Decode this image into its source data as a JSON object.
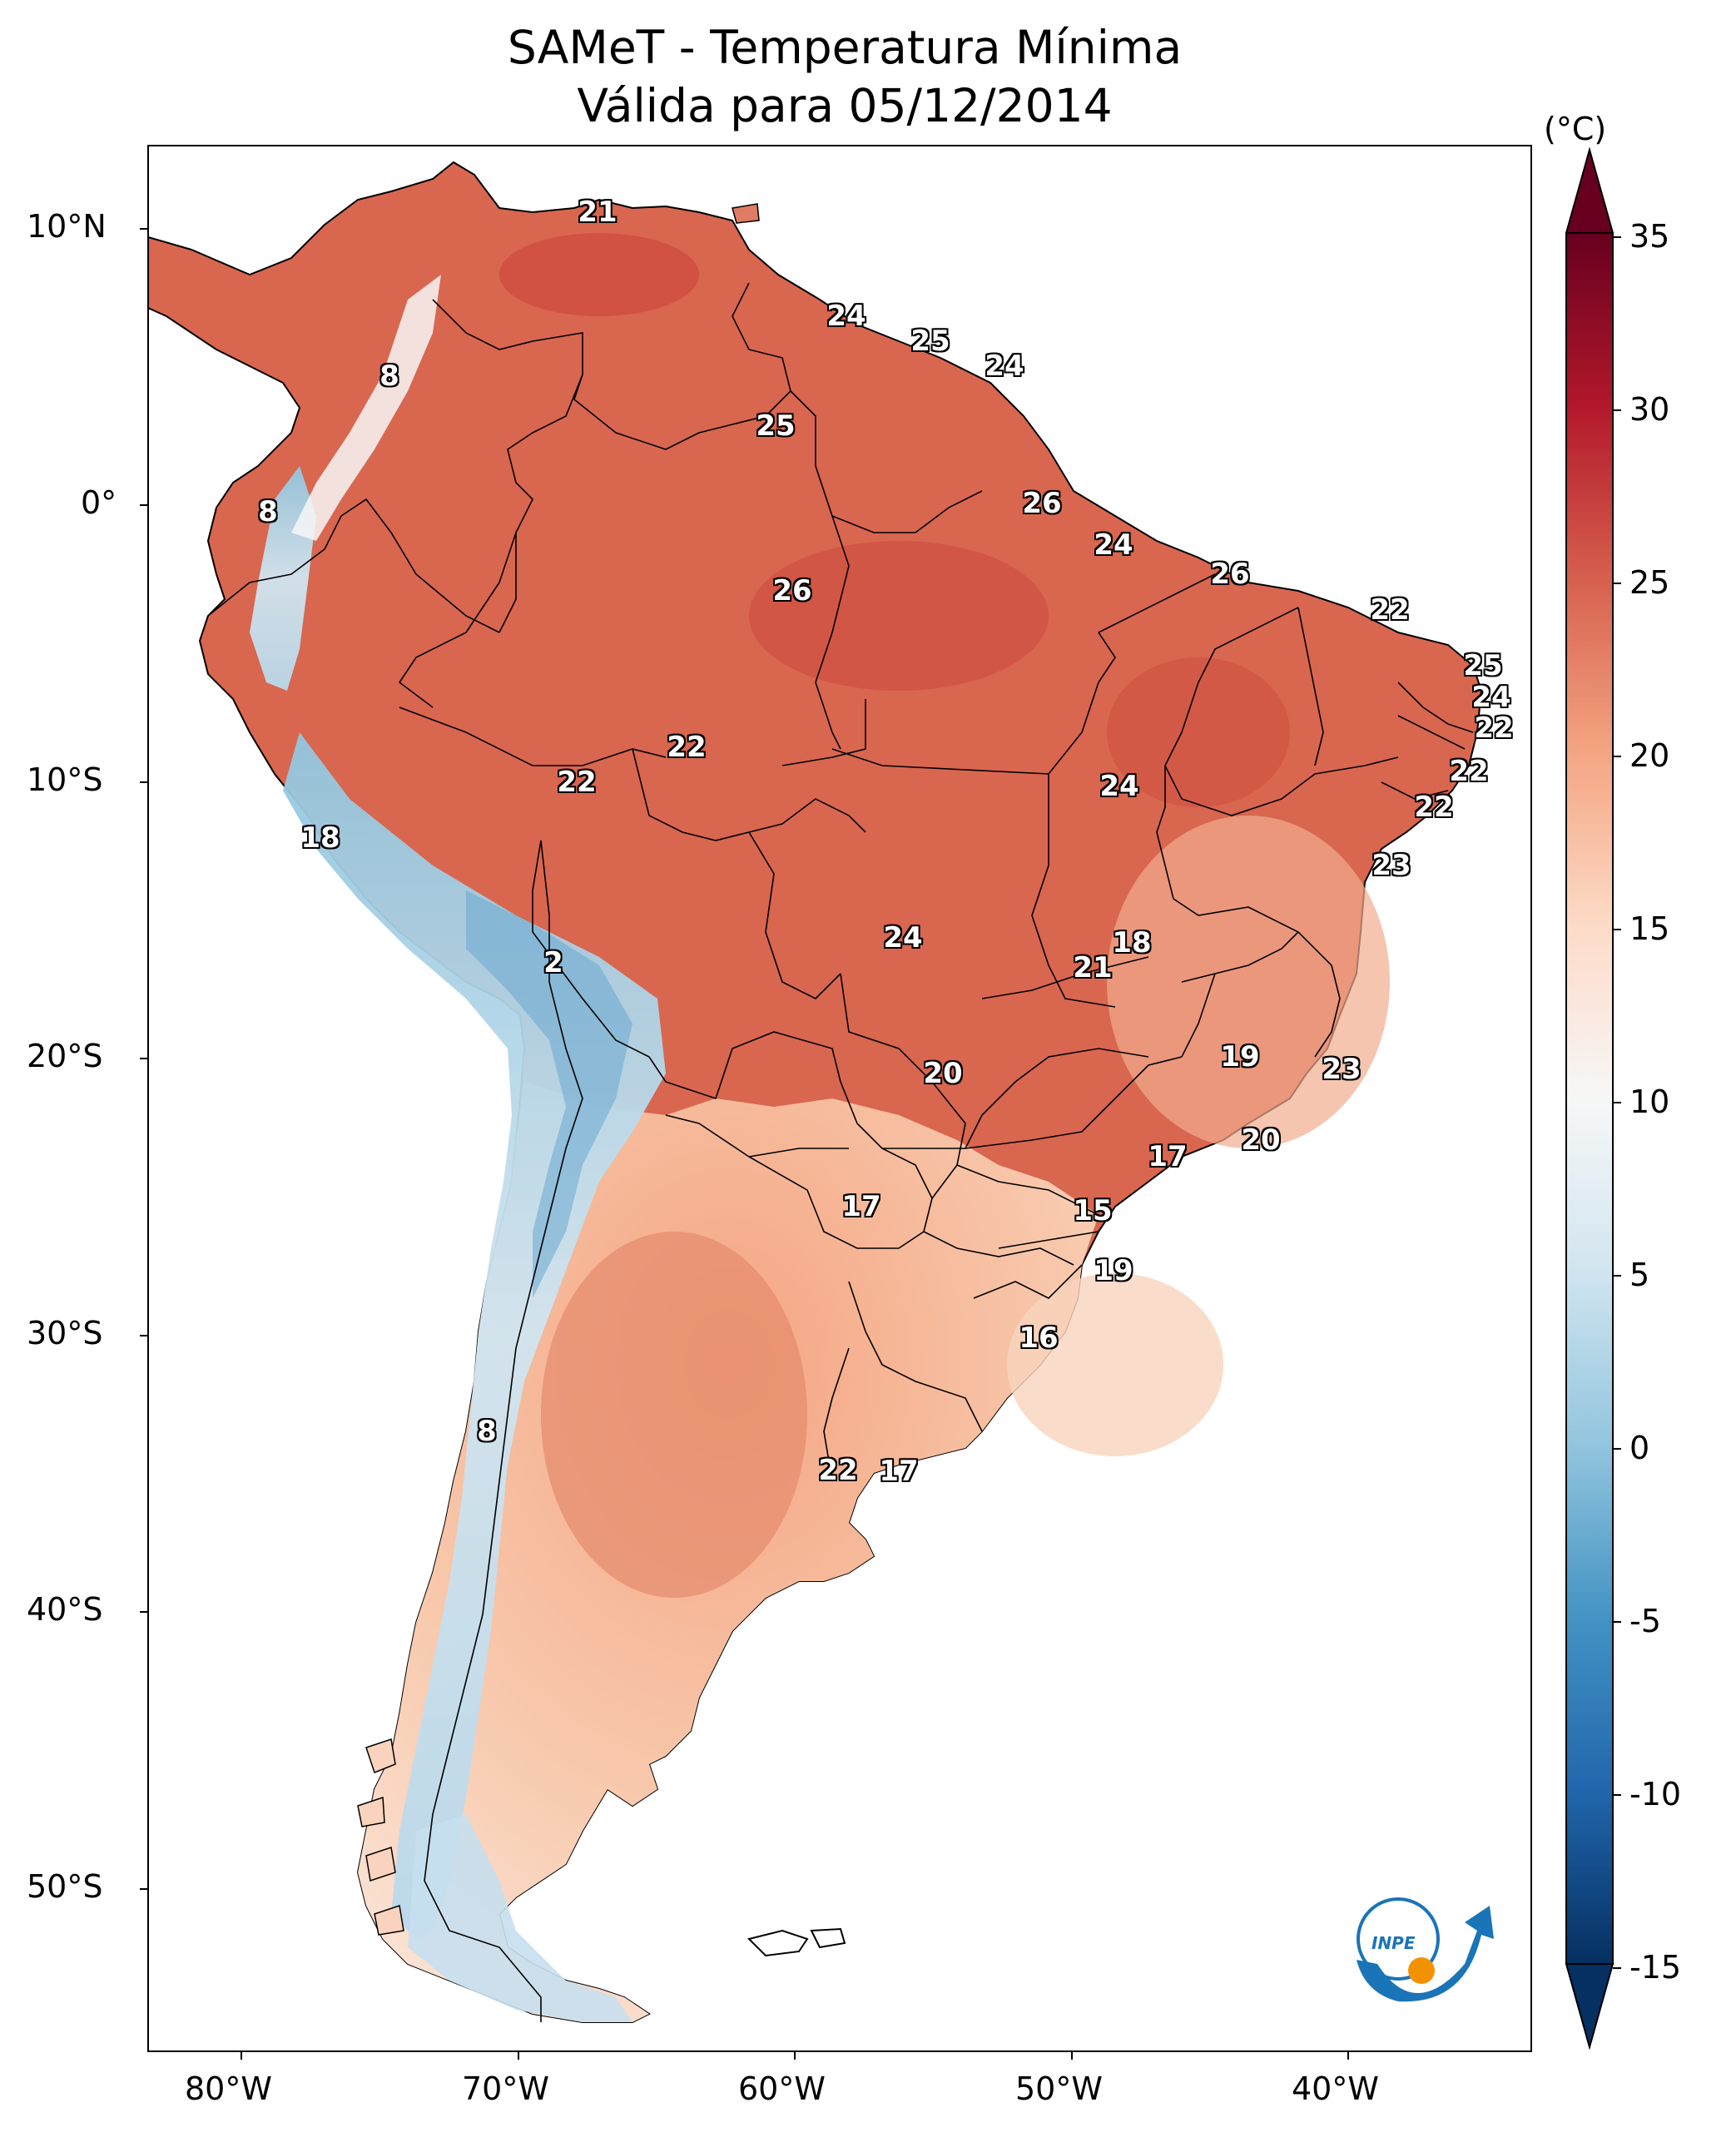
{
  "title_line1": "SAMeT - Temperatura Mínima",
  "title_line2": "Válida para 05/12/2014",
  "colorbar": {
    "unit": "(°C)",
    "ticks": [
      "35",
      "30",
      "25",
      "20",
      "15",
      "10",
      "5",
      "0",
      "-5",
      "-10",
      "-15"
    ],
    "range": [
      -15,
      35
    ],
    "colormap": "RdBu_r",
    "colors": [
      "#053061",
      "#2166ac",
      "#4393c3",
      "#92c5de",
      "#d1e5f0",
      "#f7f7f7",
      "#fddbc7",
      "#f4a582",
      "#d6604d",
      "#b2182b",
      "#67001f"
    ]
  },
  "axes": {
    "lat_labels": [
      "10°N",
      "0°",
      "10°S",
      "20°S",
      "30°S",
      "40°S",
      "50°S"
    ],
    "lon_labels": [
      "80°W",
      "70°W",
      "60°W",
      "50°W",
      "40°W"
    ]
  },
  "temperature_labels": [
    "21",
    "8",
    "8",
    "24",
    "25",
    "24",
    "25",
    "26",
    "24",
    "26",
    "26",
    "22",
    "25",
    "24",
    "22",
    "22",
    "22",
    "22",
    "22",
    "24",
    "23",
    "18",
    "2",
    "24",
    "18",
    "21",
    "19",
    "23",
    "20",
    "20",
    "17",
    "17",
    "15",
    "19",
    "16",
    "8",
    "22",
    "17"
  ],
  "logo": {
    "text": "INPE"
  }
}
